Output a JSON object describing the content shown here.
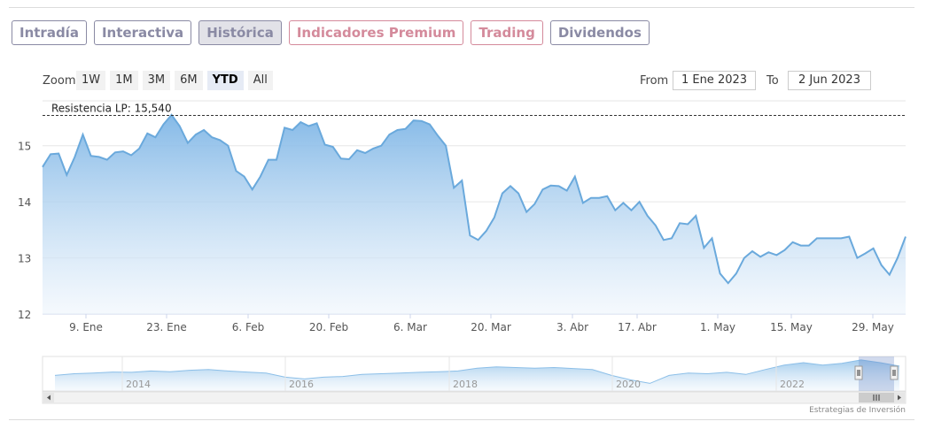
{
  "tabs": [
    {
      "label": "Intradía",
      "style": "gray"
    },
    {
      "label": "Interactiva",
      "style": "gray"
    },
    {
      "label": "Histórica",
      "style": "active"
    },
    {
      "label": "Indicadores Premium",
      "style": "pink"
    },
    {
      "label": "Trading",
      "style": "pink"
    },
    {
      "label": "Dividendos",
      "style": "gray"
    }
  ],
  "zoom": {
    "label": "Zoom",
    "buttons": [
      "1W",
      "1M",
      "3M",
      "6M",
      "YTD",
      "All"
    ],
    "selected": "YTD"
  },
  "range": {
    "from_label": "From",
    "from_value": "1 Ene 2023",
    "to_label": "To",
    "to_value": "2 Jun 2023"
  },
  "credit": "Estrategias de Inversión",
  "colors": {
    "line": "#6aa9dc",
    "area_top": "#7fb6e6",
    "area_bottom": "#eef5fc",
    "resistance": "#333333",
    "tab_gray": "#8a8aa4",
    "tab_pink": "#d48a9b"
  },
  "chart_data": {
    "type": "area",
    "ylim": [
      12,
      15.8
    ],
    "yticks": [
      12,
      13,
      14,
      15
    ],
    "xlabels": [
      "9. Ene",
      "23. Ene",
      "6. Feb",
      "20. Feb",
      "6. Mar",
      "20. Mar",
      "3. Abr",
      "17. Abr",
      "1. May",
      "15. May",
      "29. May"
    ],
    "resistance": {
      "label": "Resistencia LP: 15,540",
      "value": 15.54
    },
    "series": [
      {
        "values": [
          14.62,
          14.85,
          14.86,
          14.48,
          14.8,
          15.2,
          14.82,
          14.8,
          14.75,
          14.88,
          14.9,
          14.83,
          14.95,
          15.22,
          15.15,
          15.38,
          15.55,
          15.35,
          15.05,
          15.2,
          15.28,
          15.15,
          15.1,
          15.0,
          14.55,
          14.45,
          14.22,
          14.45,
          14.75,
          14.75,
          15.32,
          15.28,
          15.42,
          15.35,
          15.4,
          15.02,
          14.98,
          14.77,
          14.76,
          14.92,
          14.87,
          14.95,
          15.0,
          15.2,
          15.28,
          15.3,
          15.45,
          15.44,
          15.38,
          15.18,
          15.0,
          14.25,
          14.38,
          13.4,
          13.32,
          13.48,
          13.72,
          14.15,
          14.28,
          14.15,
          13.82,
          13.96,
          14.22,
          14.29,
          14.28,
          14.2,
          14.45,
          13.98,
          14.07,
          14.07,
          14.1,
          13.85,
          13.98,
          13.85,
          14.0,
          13.75,
          13.58,
          13.32,
          13.35,
          13.62,
          13.6,
          13.75,
          13.18,
          13.35,
          12.72,
          12.55,
          12.72,
          13.0,
          13.12,
          13.02,
          13.1,
          13.05,
          13.14,
          13.28,
          13.22,
          13.22,
          13.35,
          13.35,
          13.35,
          13.35,
          13.38,
          13.0,
          13.08,
          13.17,
          12.87,
          12.7,
          13.0,
          13.38
        ]
      }
    ],
    "navigator": {
      "xlabels": [
        "2014",
        "2016",
        "2018",
        "2020",
        "2022"
      ],
      "values": [
        10.5,
        11.0,
        11.2,
        11.5,
        11.4,
        11.8,
        11.6,
        12.0,
        12.2,
        11.8,
        11.5,
        11.2,
        10.0,
        9.5,
        10.0,
        10.2,
        10.8,
        11.0,
        11.2,
        11.4,
        11.6,
        11.8,
        12.6,
        13.0,
        12.8,
        12.6,
        12.8,
        12.5,
        12.2,
        10.5,
        9.2,
        8.2,
        10.5,
        11.2,
        11.0,
        11.4,
        10.8,
        12.2,
        13.5,
        14.2,
        13.5,
        14.0,
        15.0,
        14.2,
        13.2
      ]
    }
  }
}
